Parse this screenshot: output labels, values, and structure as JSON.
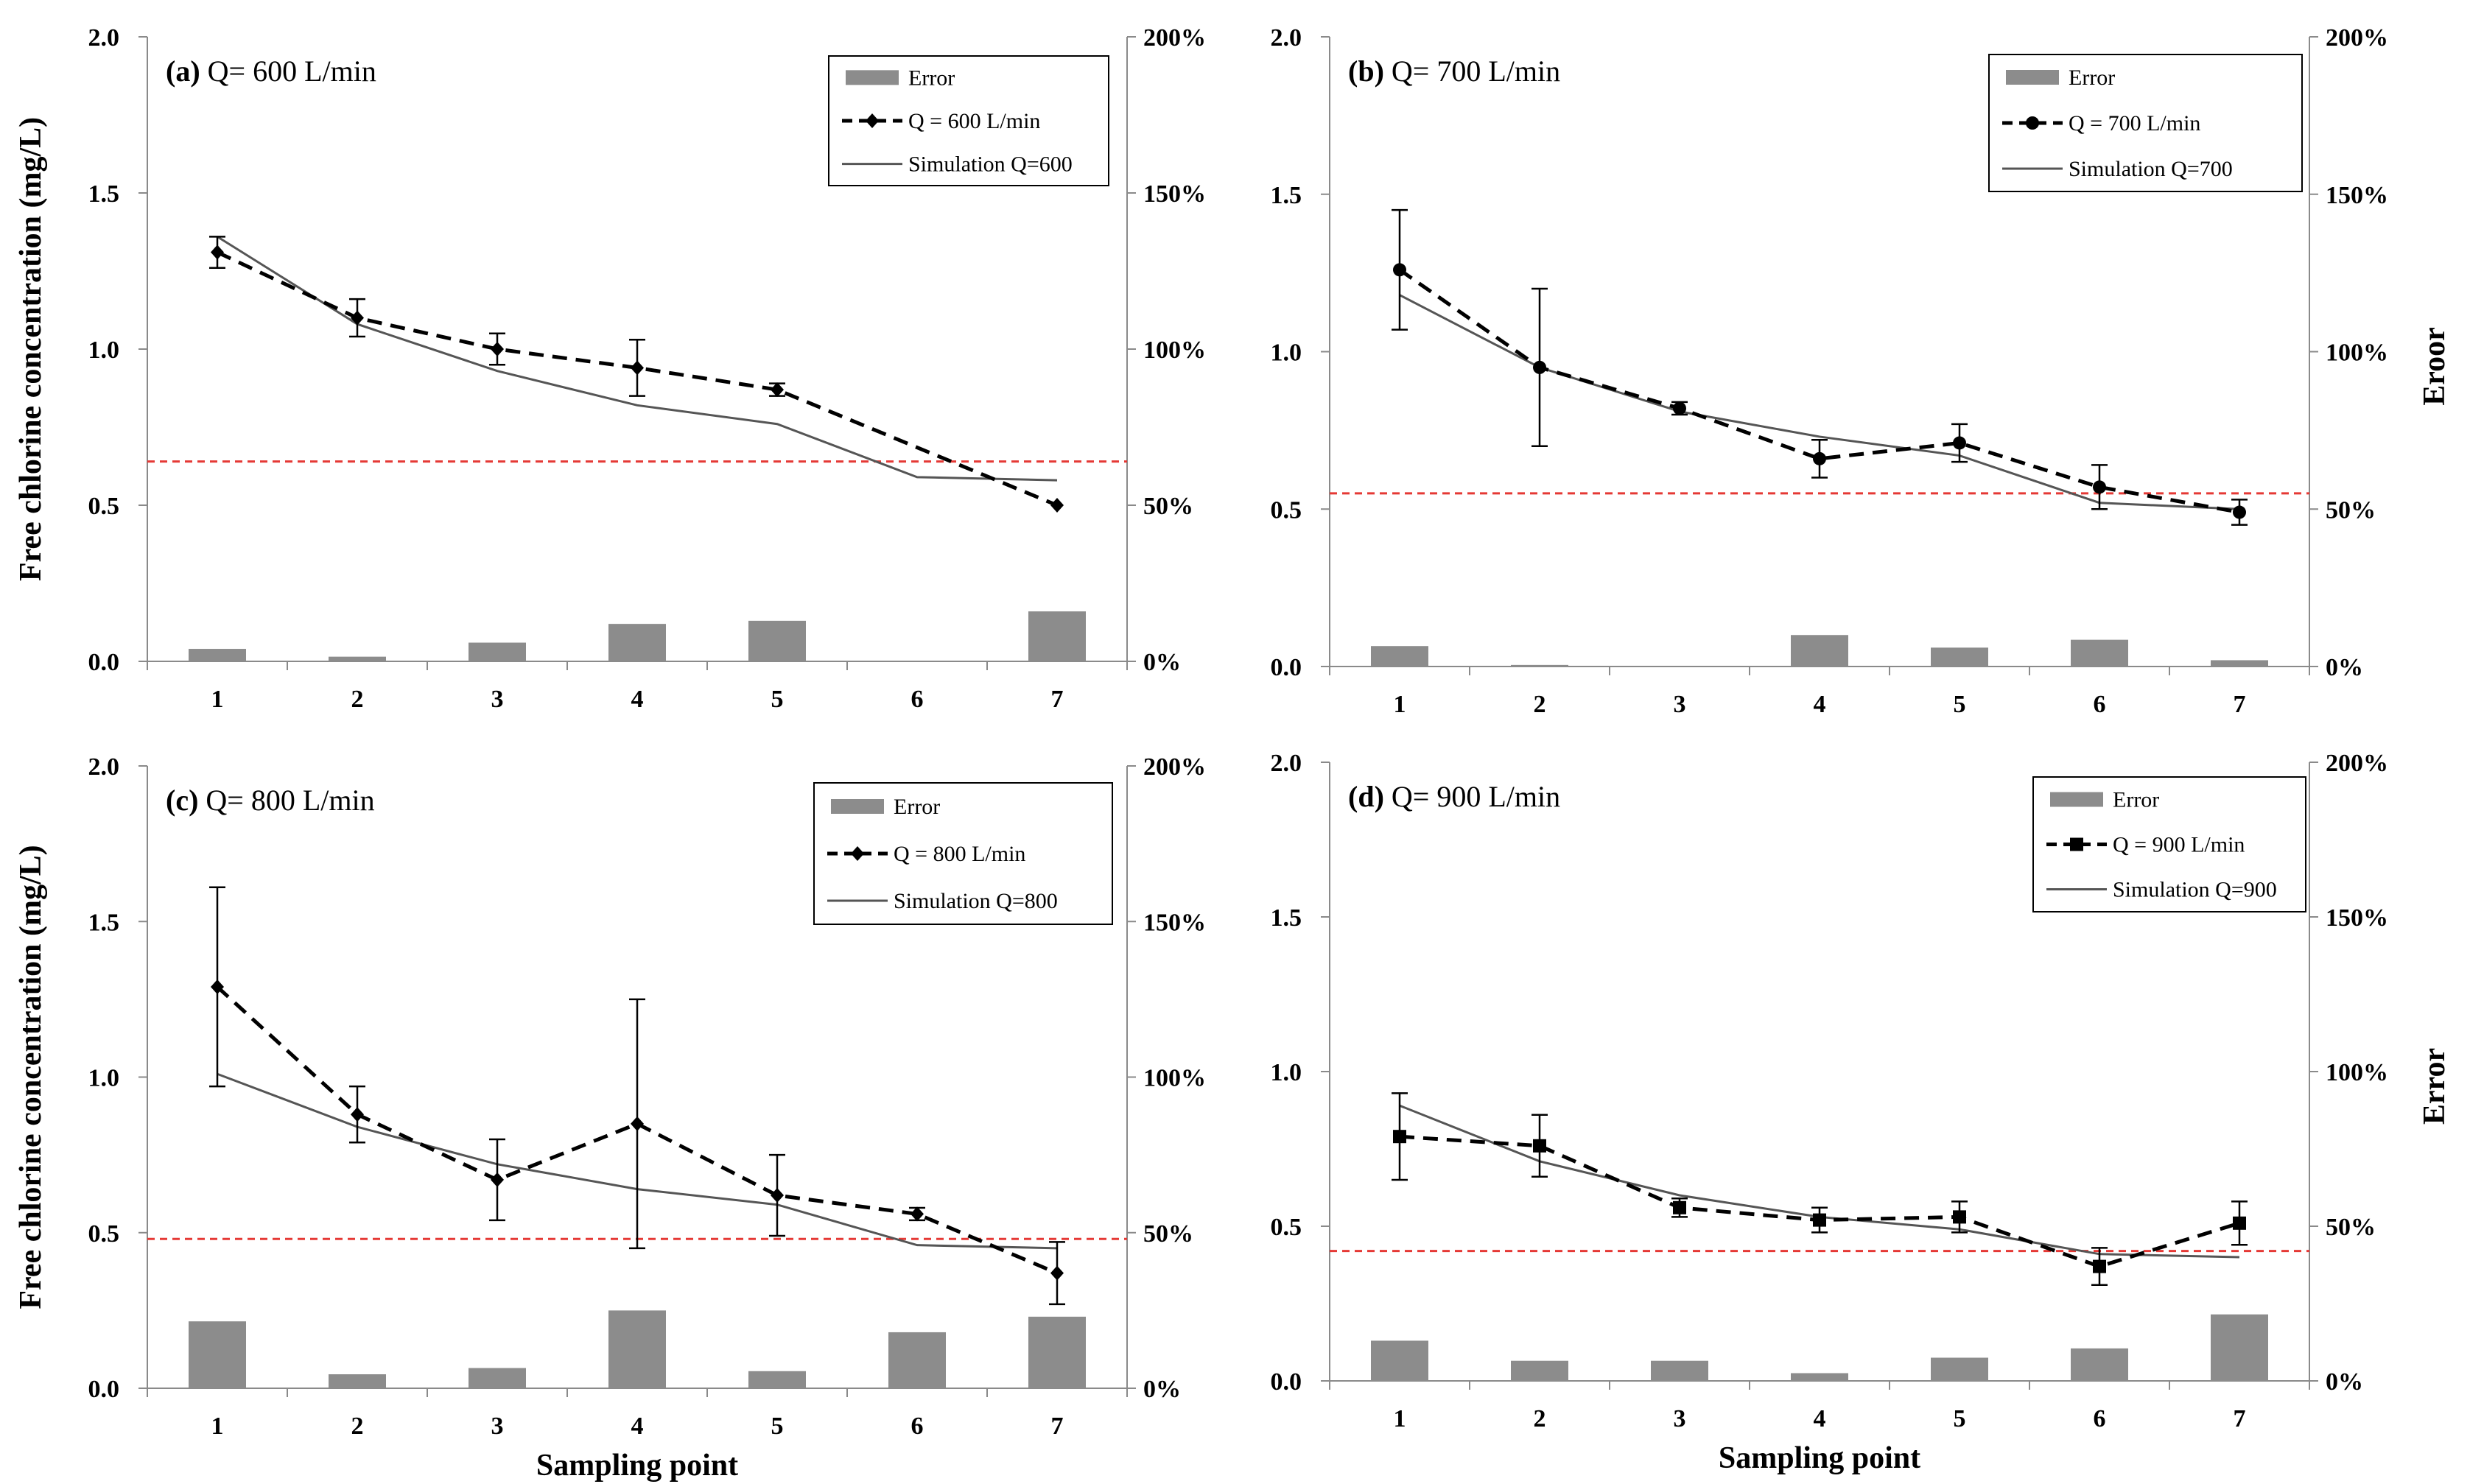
{
  "colors": {
    "bar": "#8c8c8c",
    "measured": "#000000",
    "simulation": "#555555",
    "threshold": "#e53935",
    "axis": "#8a8a8a"
  },
  "chart_data": [
    {
      "type": "bar+line",
      "panel_label": "(a)",
      "title": "Q= 600 L/min",
      "categories": [
        "1",
        "2",
        "3",
        "4",
        "5",
        "6",
        "7"
      ],
      "series": [
        {
          "name": "Error",
          "kind": "bar",
          "axis": "right",
          "values": [
            4,
            1.5,
            6,
            12,
            13,
            0,
            16
          ]
        },
        {
          "name": "Q = 600 L/min",
          "kind": "line-dashed",
          "axis": "left",
          "marker": "diamond",
          "values": [
            1.31,
            1.1,
            1.0,
            0.94,
            0.87,
            null,
            0.5
          ],
          "error": [
            0.05,
            0.06,
            0.05,
            0.09,
            0.02,
            null,
            0
          ]
        },
        {
          "name": "Simulation Q=600",
          "kind": "line",
          "axis": "left",
          "values": [
            1.36,
            1.08,
            0.93,
            0.82,
            0.76,
            0.59,
            0.58
          ]
        }
      ],
      "dashed_connect_x": [
        1,
        2,
        3,
        4,
        5,
        7
      ],
      "threshold": 0.64,
      "ylim_left": [
        0,
        2.0
      ],
      "ylim_right": [
        0,
        200
      ],
      "yticks_left": [
        "0.0",
        "0.5",
        "1.0",
        "1.5",
        "2.0"
      ],
      "yticks_right": [
        "0%",
        "50%",
        "100%",
        "150%",
        "200%"
      ],
      "ylabel_left": "Free chlorine concentration (mg/L)",
      "ylabel_right": "",
      "xlabel": "",
      "legend_position": "top-right"
    },
    {
      "type": "bar+line",
      "panel_label": "(b)",
      "title": "Q= 700 L/min",
      "categories": [
        "1",
        "2",
        "3",
        "4",
        "5",
        "6",
        "7"
      ],
      "series": [
        {
          "name": "Error",
          "kind": "bar",
          "axis": "right",
          "values": [
            6.5,
            0.5,
            0,
            10,
            6,
            8.5,
            2
          ]
        },
        {
          "name": "Q = 700 L/min",
          "kind": "line-dashed",
          "axis": "left",
          "marker": "circle",
          "values": [
            1.26,
            0.95,
            0.82,
            0.66,
            0.71,
            0.57,
            0.49
          ],
          "error": [
            0.19,
            0.25,
            0.02,
            0.06,
            0.06,
            0.07,
            0.04
          ]
        },
        {
          "name": "Simulation  Q=700",
          "kind": "line",
          "axis": "left",
          "values": [
            1.18,
            0.95,
            0.81,
            0.73,
            0.67,
            0.52,
            0.5
          ]
        }
      ],
      "threshold": 0.55,
      "ylim_left": [
        0,
        2.0
      ],
      "ylim_right": [
        0,
        200
      ],
      "yticks_left": [
        "0.0",
        "0.5",
        "1.0",
        "1.5",
        "2.0"
      ],
      "yticks_right": [
        "0%",
        "50%",
        "100%",
        "150%",
        "200%"
      ],
      "ylabel_left": "",
      "ylabel_right": "Eroor",
      "xlabel": "",
      "legend_position": "top-right"
    },
    {
      "type": "bar+line",
      "panel_label": "(c)",
      "title": "Q= 800 L/min",
      "categories": [
        "1",
        "2",
        "3",
        "4",
        "5",
        "6",
        "7"
      ],
      "series": [
        {
          "name": "Error",
          "kind": "bar",
          "axis": "right",
          "values": [
            21.5,
            4.5,
            6.5,
            25,
            5.5,
            18,
            23
          ]
        },
        {
          "name": "Q = 800 L/min",
          "kind": "line-dashed",
          "axis": "left",
          "marker": "diamond",
          "values": [
            1.29,
            0.88,
            0.67,
            0.85,
            0.62,
            0.56,
            0.37
          ],
          "error": [
            0.32,
            0.09,
            0.13,
            0.4,
            0.13,
            0.02,
            0.1
          ]
        },
        {
          "name": "Simulation Q=800",
          "kind": "line",
          "axis": "left",
          "values": [
            1.01,
            0.84,
            0.72,
            0.64,
            0.59,
            0.46,
            0.45
          ]
        }
      ],
      "threshold": 0.48,
      "ylim_left": [
        0,
        2.0
      ],
      "ylim_right": [
        0,
        200
      ],
      "yticks_left": [
        "0.0",
        "0.5",
        "1.0",
        "1.5",
        "2.0"
      ],
      "yticks_right": [
        "0%",
        "50%",
        "100%",
        "150%",
        "200%"
      ],
      "ylabel_left": "Free chlorine concentration (mg/L)",
      "ylabel_right": "",
      "xlabel": "Sampling point",
      "legend_position": "top-right"
    },
    {
      "type": "bar+line",
      "panel_label": "(d)",
      "title": "Q= 900 L/min",
      "categories": [
        "1",
        "2",
        "3",
        "4",
        "5",
        "6",
        "7"
      ],
      "series": [
        {
          "name": "Error",
          "kind": "bar",
          "axis": "right",
          "values": [
            13,
            6.5,
            6.5,
            2.5,
            7.5,
            10.5,
            21.5
          ]
        },
        {
          "name": "Q = 900 L/min",
          "kind": "line-dashed",
          "axis": "left",
          "marker": "square",
          "values": [
            0.79,
            0.76,
            0.56,
            0.52,
            0.53,
            0.37,
            0.51
          ],
          "error": [
            0.14,
            0.1,
            0.03,
            0.04,
            0.05,
            0.06,
            0.07
          ]
        },
        {
          "name": "Simulation Q=900",
          "kind": "line",
          "axis": "left",
          "values": [
            0.89,
            0.71,
            0.6,
            0.53,
            0.49,
            0.41,
            0.4
          ]
        }
      ],
      "threshold": 0.42,
      "ylim_left": [
        0,
        2.0
      ],
      "ylim_right": [
        0,
        200
      ],
      "yticks_left": [
        "0.0",
        "0.5",
        "1.0",
        "1.5",
        "2.0"
      ],
      "yticks_right": [
        "0%",
        "50%",
        "100%",
        "150%",
        "200%"
      ],
      "ylabel_left": "",
      "ylabel_right": "Error",
      "xlabel": "Sampling point",
      "legend_position": "top-right"
    }
  ]
}
